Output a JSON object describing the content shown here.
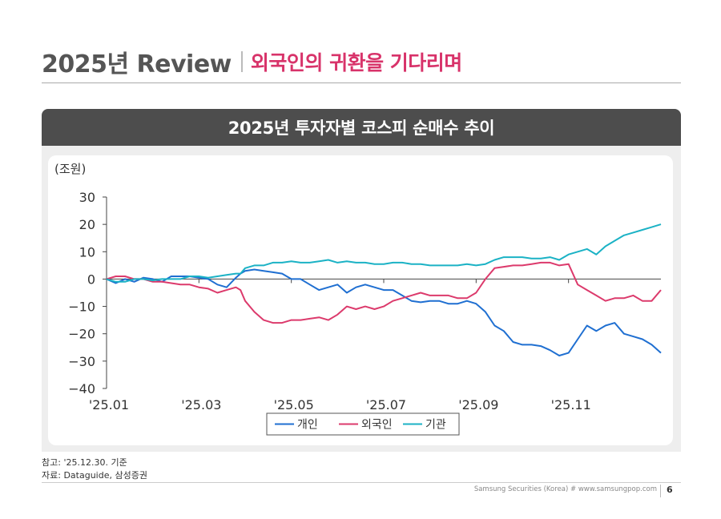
{
  "header": {
    "main": "2025년 Review",
    "sub": "외국인의 귀환을 기다리며"
  },
  "panel_title": "2025년 투자자별 코스피 순매수 추이",
  "notes": {
    "line1": "참고: '25.12.30. 기준",
    "line2": "자료: Dataguide, 삼성증권"
  },
  "footer": {
    "text": "Samsung Securities (Korea) # www.samsungpop.com",
    "page": "6"
  },
  "colors": {
    "individual": "#1f6fd1",
    "foreign": "#dc3a6c",
    "institution": "#1bb2c5"
  },
  "chart_data": {
    "type": "line",
    "title": "2025년 투자자별 코스피 순매수 추이",
    "ylabel": "(조원)",
    "xlabel": "",
    "ylim": [
      -40,
      30
    ],
    "yticks": [
      30,
      20,
      10,
      0,
      -10,
      -20,
      -30,
      -40
    ],
    "ytick_labels": [
      "30",
      "20",
      "10",
      "0",
      "−10",
      "−20",
      "−30",
      "−40"
    ],
    "xlim": [
      0,
      12
    ],
    "xticks": [
      0,
      2,
      4,
      6,
      8,
      10
    ],
    "xtick_labels": [
      "'25.01",
      "'25.03",
      "'25.05",
      "'25.07",
      "'25.09",
      "'25.11"
    ],
    "legend": {
      "position": "bottom-center",
      "labels": [
        "개인",
        "외국인",
        "기관"
      ]
    },
    "series": [
      {
        "name": "개인",
        "x": [
          0,
          0.2,
          0.4,
          0.6,
          0.8,
          1.0,
          1.2,
          1.4,
          1.6,
          1.8,
          2.0,
          2.2,
          2.4,
          2.6,
          2.8,
          2.9,
          3.0,
          3.2,
          3.4,
          3.6,
          3.8,
          4.0,
          4.2,
          4.4,
          4.6,
          4.8,
          5.0,
          5.2,
          5.4,
          5.6,
          5.8,
          6.0,
          6.2,
          6.4,
          6.6,
          6.8,
          7.0,
          7.2,
          7.4,
          7.6,
          7.8,
          8.0,
          8.2,
          8.4,
          8.6,
          8.8,
          9.0,
          9.2,
          9.4,
          9.6,
          9.8,
          10.0,
          10.2,
          10.4,
          10.6,
          10.8,
          11.0,
          11.2,
          11.4,
          11.6,
          11.8,
          12.0
        ],
        "values": [
          0,
          -1.5,
          0,
          -1,
          0.5,
          0,
          -1,
          1,
          1,
          1,
          0.5,
          0,
          -2,
          -3,
          0.5,
          2,
          3,
          3.5,
          3,
          2.5,
          2,
          0,
          0,
          -2,
          -4,
          -3,
          -2,
          -5,
          -3,
          -2,
          -3,
          -4,
          -4,
          -6,
          -8,
          -8.5,
          -8,
          -8,
          -9,
          -9,
          -8,
          -9,
          -12,
          -17,
          -19,
          -23,
          -24,
          -24,
          -24.5,
          -26,
          -28,
          -27,
          -22,
          -17,
          -19,
          -17,
          -16,
          -20,
          -21,
          -22,
          -24,
          -27
        ]
      },
      {
        "name": "외국인",
        "x": [
          0,
          0.2,
          0.4,
          0.6,
          0.8,
          1.0,
          1.2,
          1.4,
          1.6,
          1.8,
          2.0,
          2.2,
          2.4,
          2.6,
          2.8,
          2.9,
          3.0,
          3.2,
          3.4,
          3.6,
          3.8,
          4.0,
          4.2,
          4.4,
          4.6,
          4.8,
          5.0,
          5.2,
          5.4,
          5.6,
          5.8,
          6.0,
          6.2,
          6.4,
          6.6,
          6.8,
          7.0,
          7.2,
          7.4,
          7.6,
          7.8,
          8.0,
          8.2,
          8.4,
          8.6,
          8.8,
          9.0,
          9.2,
          9.4,
          9.6,
          9.8,
          10.0,
          10.2,
          10.4,
          10.6,
          10.8,
          11.0,
          11.2,
          11.4,
          11.6,
          11.8,
          12.0
        ],
        "values": [
          0,
          1,
          1,
          0,
          0,
          -1,
          -1,
          -1.5,
          -2,
          -2,
          -3,
          -3.5,
          -5,
          -4,
          -3,
          -4,
          -8,
          -12,
          -15,
          -16,
          -16,
          -15,
          -15,
          -14.5,
          -14,
          -15,
          -13,
          -10,
          -11,
          -10,
          -11,
          -10,
          -8,
          -7,
          -6,
          -5,
          -6,
          -6,
          -6,
          -7,
          -7,
          -5,
          0,
          4,
          4.5,
          5,
          5,
          5.5,
          6,
          6,
          5,
          5.5,
          -2,
          -4,
          -6,
          -8,
          -7,
          -7,
          -6,
          -8,
          -8,
          -4
        ]
      },
      {
        "name": "기관",
        "x": [
          0,
          0.2,
          0.4,
          0.6,
          0.8,
          1.0,
          1.2,
          1.4,
          1.6,
          1.8,
          2.0,
          2.2,
          2.4,
          2.6,
          2.8,
          2.9,
          3.0,
          3.2,
          3.4,
          3.6,
          3.8,
          4.0,
          4.2,
          4.4,
          4.6,
          4.8,
          5.0,
          5.2,
          5.4,
          5.6,
          5.8,
          6.0,
          6.2,
          6.4,
          6.6,
          6.8,
          7.0,
          7.2,
          7.4,
          7.6,
          7.8,
          8.0,
          8.2,
          8.4,
          8.6,
          8.8,
          9.0,
          9.2,
          9.4,
          9.6,
          9.8,
          10.0,
          10.2,
          10.4,
          10.6,
          10.8,
          11.0,
          11.2,
          11.4,
          11.6,
          11.8,
          12.0
        ],
        "values": [
          0,
          -1,
          -1,
          0,
          0,
          -0.5,
          0,
          0,
          0,
          1,
          1,
          0.5,
          1,
          1.5,
          2,
          2,
          4,
          5,
          5,
          6,
          6,
          6.5,
          6,
          6,
          6.5,
          7,
          6,
          6.5,
          6,
          6,
          5.5,
          5.5,
          6,
          6,
          5.5,
          5.5,
          5,
          5,
          5,
          5,
          5.5,
          5,
          5.5,
          7,
          8,
          8,
          8,
          7.5,
          7.5,
          8,
          7,
          9,
          10,
          11,
          9,
          12,
          14,
          16,
          17,
          18,
          19,
          20
        ]
      }
    ]
  }
}
